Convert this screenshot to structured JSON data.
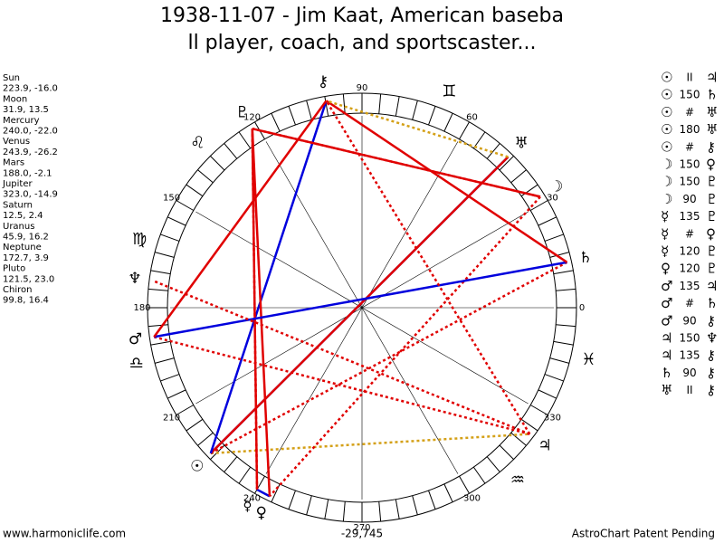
{
  "header": {
    "title_lines": [
      "1938-11-07 - Jim Kaat, American baseba",
      "ll player, coach, and sportscaster..."
    ]
  },
  "positions": [
    {
      "name": "Sun",
      "glyph": "☉",
      "coords": "223.9, -16.0"
    },
    {
      "name": "Moon",
      "glyph": "☽",
      "coords": "31.9, 13.5"
    },
    {
      "name": "Mercury",
      "glyph": "☿",
      "coords": "240.0, -22.0"
    },
    {
      "name": "Venus",
      "glyph": "♀",
      "coords": "243.9, -26.2"
    },
    {
      "name": "Mars",
      "glyph": "♂",
      "coords": "188.0, -2.1"
    },
    {
      "name": "Jupiter",
      "glyph": "♃",
      "coords": "323.0, -14.9"
    },
    {
      "name": "Saturn",
      "glyph": "♄",
      "coords": "12.5, 2.4"
    },
    {
      "name": "Uranus",
      "glyph": "♅",
      "coords": "45.9, 16.2"
    },
    {
      "name": "Neptune",
      "glyph": "♆",
      "coords": "172.7, 3.9"
    },
    {
      "name": "Pluto",
      "glyph": "♇",
      "coords": "121.5, 23.0"
    },
    {
      "name": "Chiron",
      "glyph": "⚷",
      "coords": "99.8, 16.4"
    }
  ],
  "aspects": [
    {
      "from": "☉",
      "type": "II",
      "to": "♃"
    },
    {
      "from": "☉",
      "type": "150",
      "to": "♄"
    },
    {
      "from": "☉",
      "type": "#",
      "to": "♅"
    },
    {
      "from": "☉",
      "type": "180",
      "to": "♅"
    },
    {
      "from": "☉",
      "type": "#",
      "to": "⚷"
    },
    {
      "from": "☽",
      "type": "150",
      "to": "♀"
    },
    {
      "from": "☽",
      "type": "150",
      "to": "♇"
    },
    {
      "from": "☽",
      "type": "90",
      "to": "♇"
    },
    {
      "from": "☿",
      "type": "135",
      "to": "♇"
    },
    {
      "from": "☿",
      "type": "#",
      "to": "♀"
    },
    {
      "from": "☿",
      "type": "120",
      "to": "♇"
    },
    {
      "from": "♀",
      "type": "120",
      "to": "♇"
    },
    {
      "from": "♂",
      "type": "135",
      "to": "♃"
    },
    {
      "from": "♂",
      "type": "#",
      "to": "♄"
    },
    {
      "from": "♂",
      "type": "90",
      "to": "⚷"
    },
    {
      "from": "♃",
      "type": "150",
      "to": "♆"
    },
    {
      "from": "♃",
      "type": "135",
      "to": "⚷"
    },
    {
      "from": "♄",
      "type": "90",
      "to": "⚷"
    },
    {
      "from": "♅",
      "type": "II",
      "to": "⚷"
    }
  ],
  "signs": [
    "♓",
    "♊",
    "♌",
    "♍",
    "♎",
    "♒"
  ],
  "degree_labels": [
    90,
    60,
    30,
    0,
    330,
    300,
    270,
    240,
    210,
    180,
    150,
    120
  ],
  "footer": {
    "left": "www.harmoniclife.com",
    "center": "-29,745",
    "right": "AstroChart Patent Pending"
  }
}
